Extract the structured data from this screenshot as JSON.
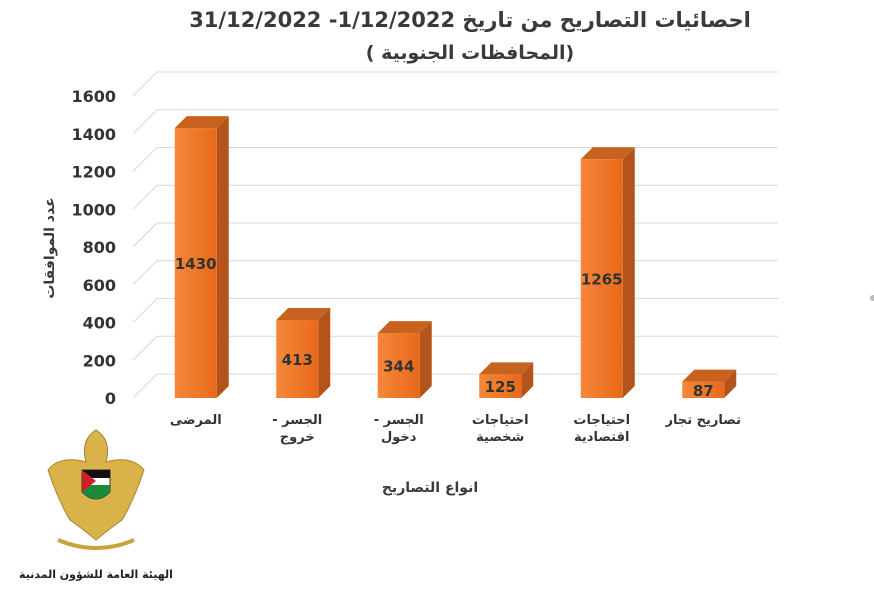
{
  "chart_data": {
    "type": "bar3d",
    "title": "احصائيات التصاريح من تاريخ 1/12/2022- 31/12/2022",
    "subtitle": "(المحافظات الجنوبية )",
    "y_label": "عدد الموافقات",
    "x_label": "انواع التصاريح",
    "categories": [
      "المرضى",
      "الجسر - خروج",
      "الجسر - دخول",
      "احتياجات شخصية",
      "احتياجات اقتصادية",
      "تصاريح تجار"
    ],
    "values": [
      1430,
      413,
      344,
      125,
      1265,
      87
    ],
    "color": "#f07a2a",
    "ylim": [
      0,
      1600
    ],
    "yticks": [
      0,
      200,
      400,
      600,
      800,
      1000,
      1200,
      1400,
      1600
    ],
    "grid": true
  },
  "footer": {
    "organization": "الهيئة العامة للشؤون المدنية"
  }
}
